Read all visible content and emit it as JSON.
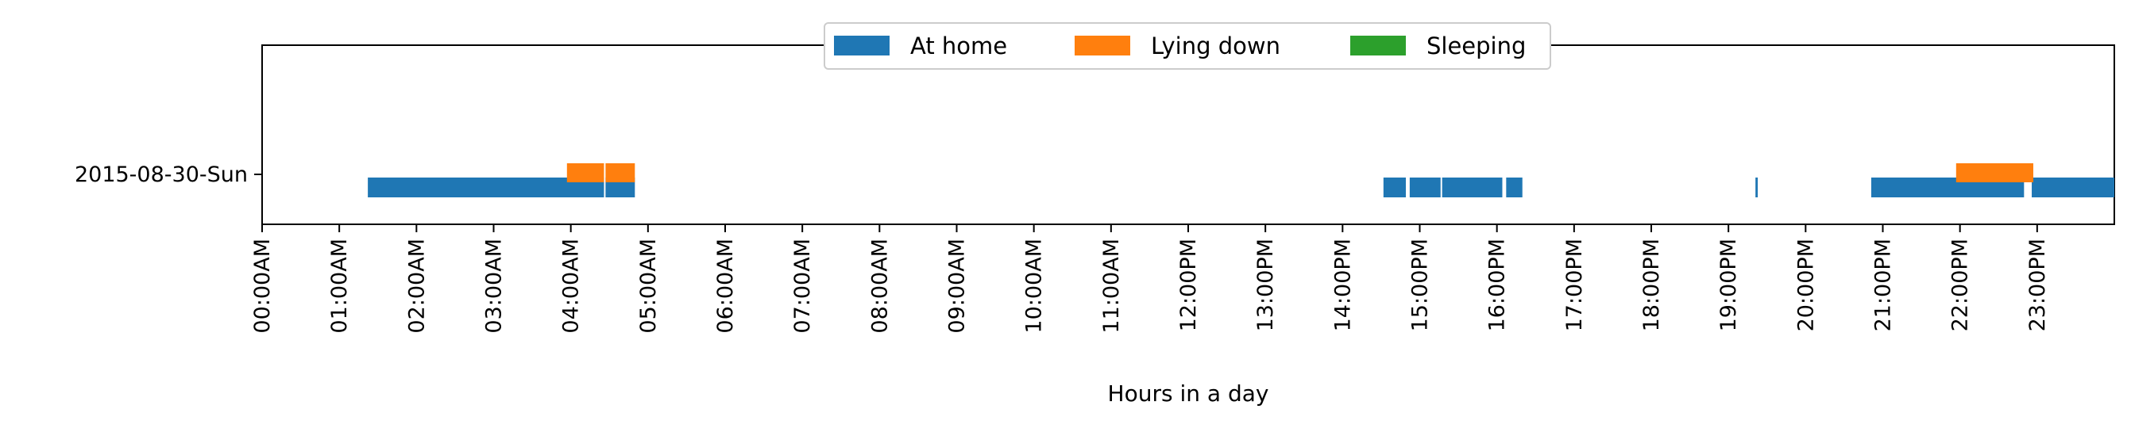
{
  "chart_data": {
    "type": "timeline",
    "title": "",
    "xlabel": "Hours in a day",
    "ylabel": "",
    "xlim": [
      0,
      24
    ],
    "x_ticks": [
      "00:00AM",
      "01:00AM",
      "02:00AM",
      "03:00AM",
      "04:00AM",
      "05:00AM",
      "06:00AM",
      "07:00AM",
      "08:00AM",
      "09:00AM",
      "10:00AM",
      "11:00AM",
      "12:00PM",
      "13:00PM",
      "14:00PM",
      "15:00PM",
      "16:00PM",
      "17:00PM",
      "18:00PM",
      "19:00PM",
      "20:00PM",
      "21:00PM",
      "22:00PM",
      "23:00PM"
    ],
    "rows": [
      "2015-08-30-Sun"
    ],
    "grid": false,
    "legend_position": "top-center",
    "series": [
      {
        "name": "At home",
        "color": "#1f77b4",
        "intervals": [
          [
            1.37,
            4.43
          ],
          [
            4.45,
            4.83
          ],
          [
            14.53,
            14.82
          ],
          [
            14.87,
            15.27
          ],
          [
            15.29,
            16.07
          ],
          [
            16.12,
            16.33
          ],
          [
            19.35,
            19.38
          ],
          [
            20.85,
            22.83
          ],
          [
            22.93,
            24.0
          ]
        ]
      },
      {
        "name": "Lying down",
        "color": "#ff7f0e",
        "intervals": [
          [
            3.95,
            4.43
          ],
          [
            4.45,
            4.83
          ],
          [
            21.95,
            22.95
          ]
        ]
      },
      {
        "name": "Sleeping",
        "color": "#2ca02c",
        "intervals": []
      }
    ]
  }
}
